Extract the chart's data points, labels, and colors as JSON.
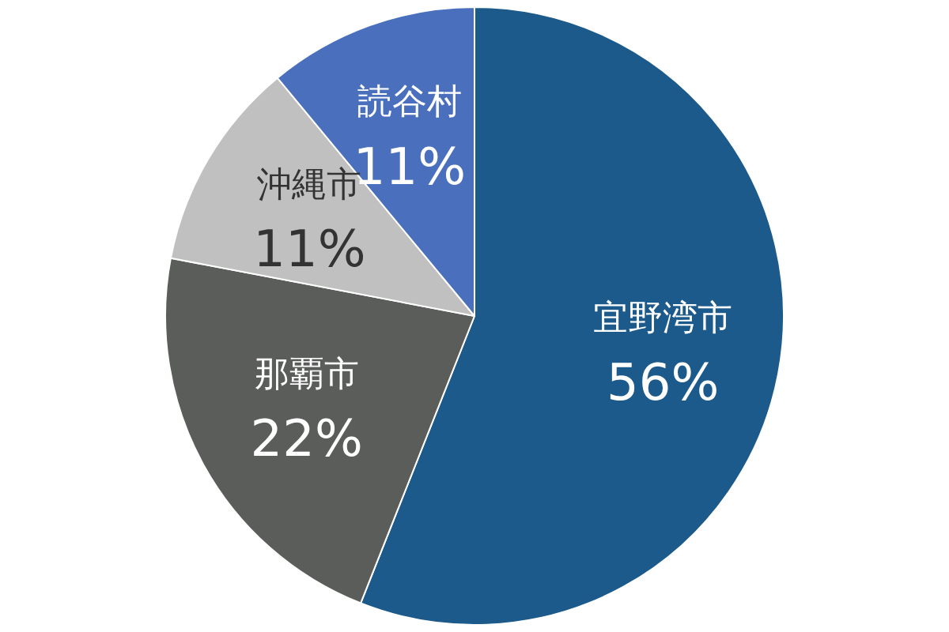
{
  "chart_data": {
    "type": "pie",
    "categories": [
      "宜野湾市",
      "那覇市",
      "沖縄市",
      "読谷村"
    ],
    "values": [
      56,
      22,
      11,
      11
    ],
    "colors": [
      "#1b5a8a",
      "#5b5d5b",
      "#c0c0c0",
      "#4a70bd"
    ],
    "value_labels": [
      "56%",
      "22%",
      "11%",
      "11%"
    ],
    "legend": false
  }
}
